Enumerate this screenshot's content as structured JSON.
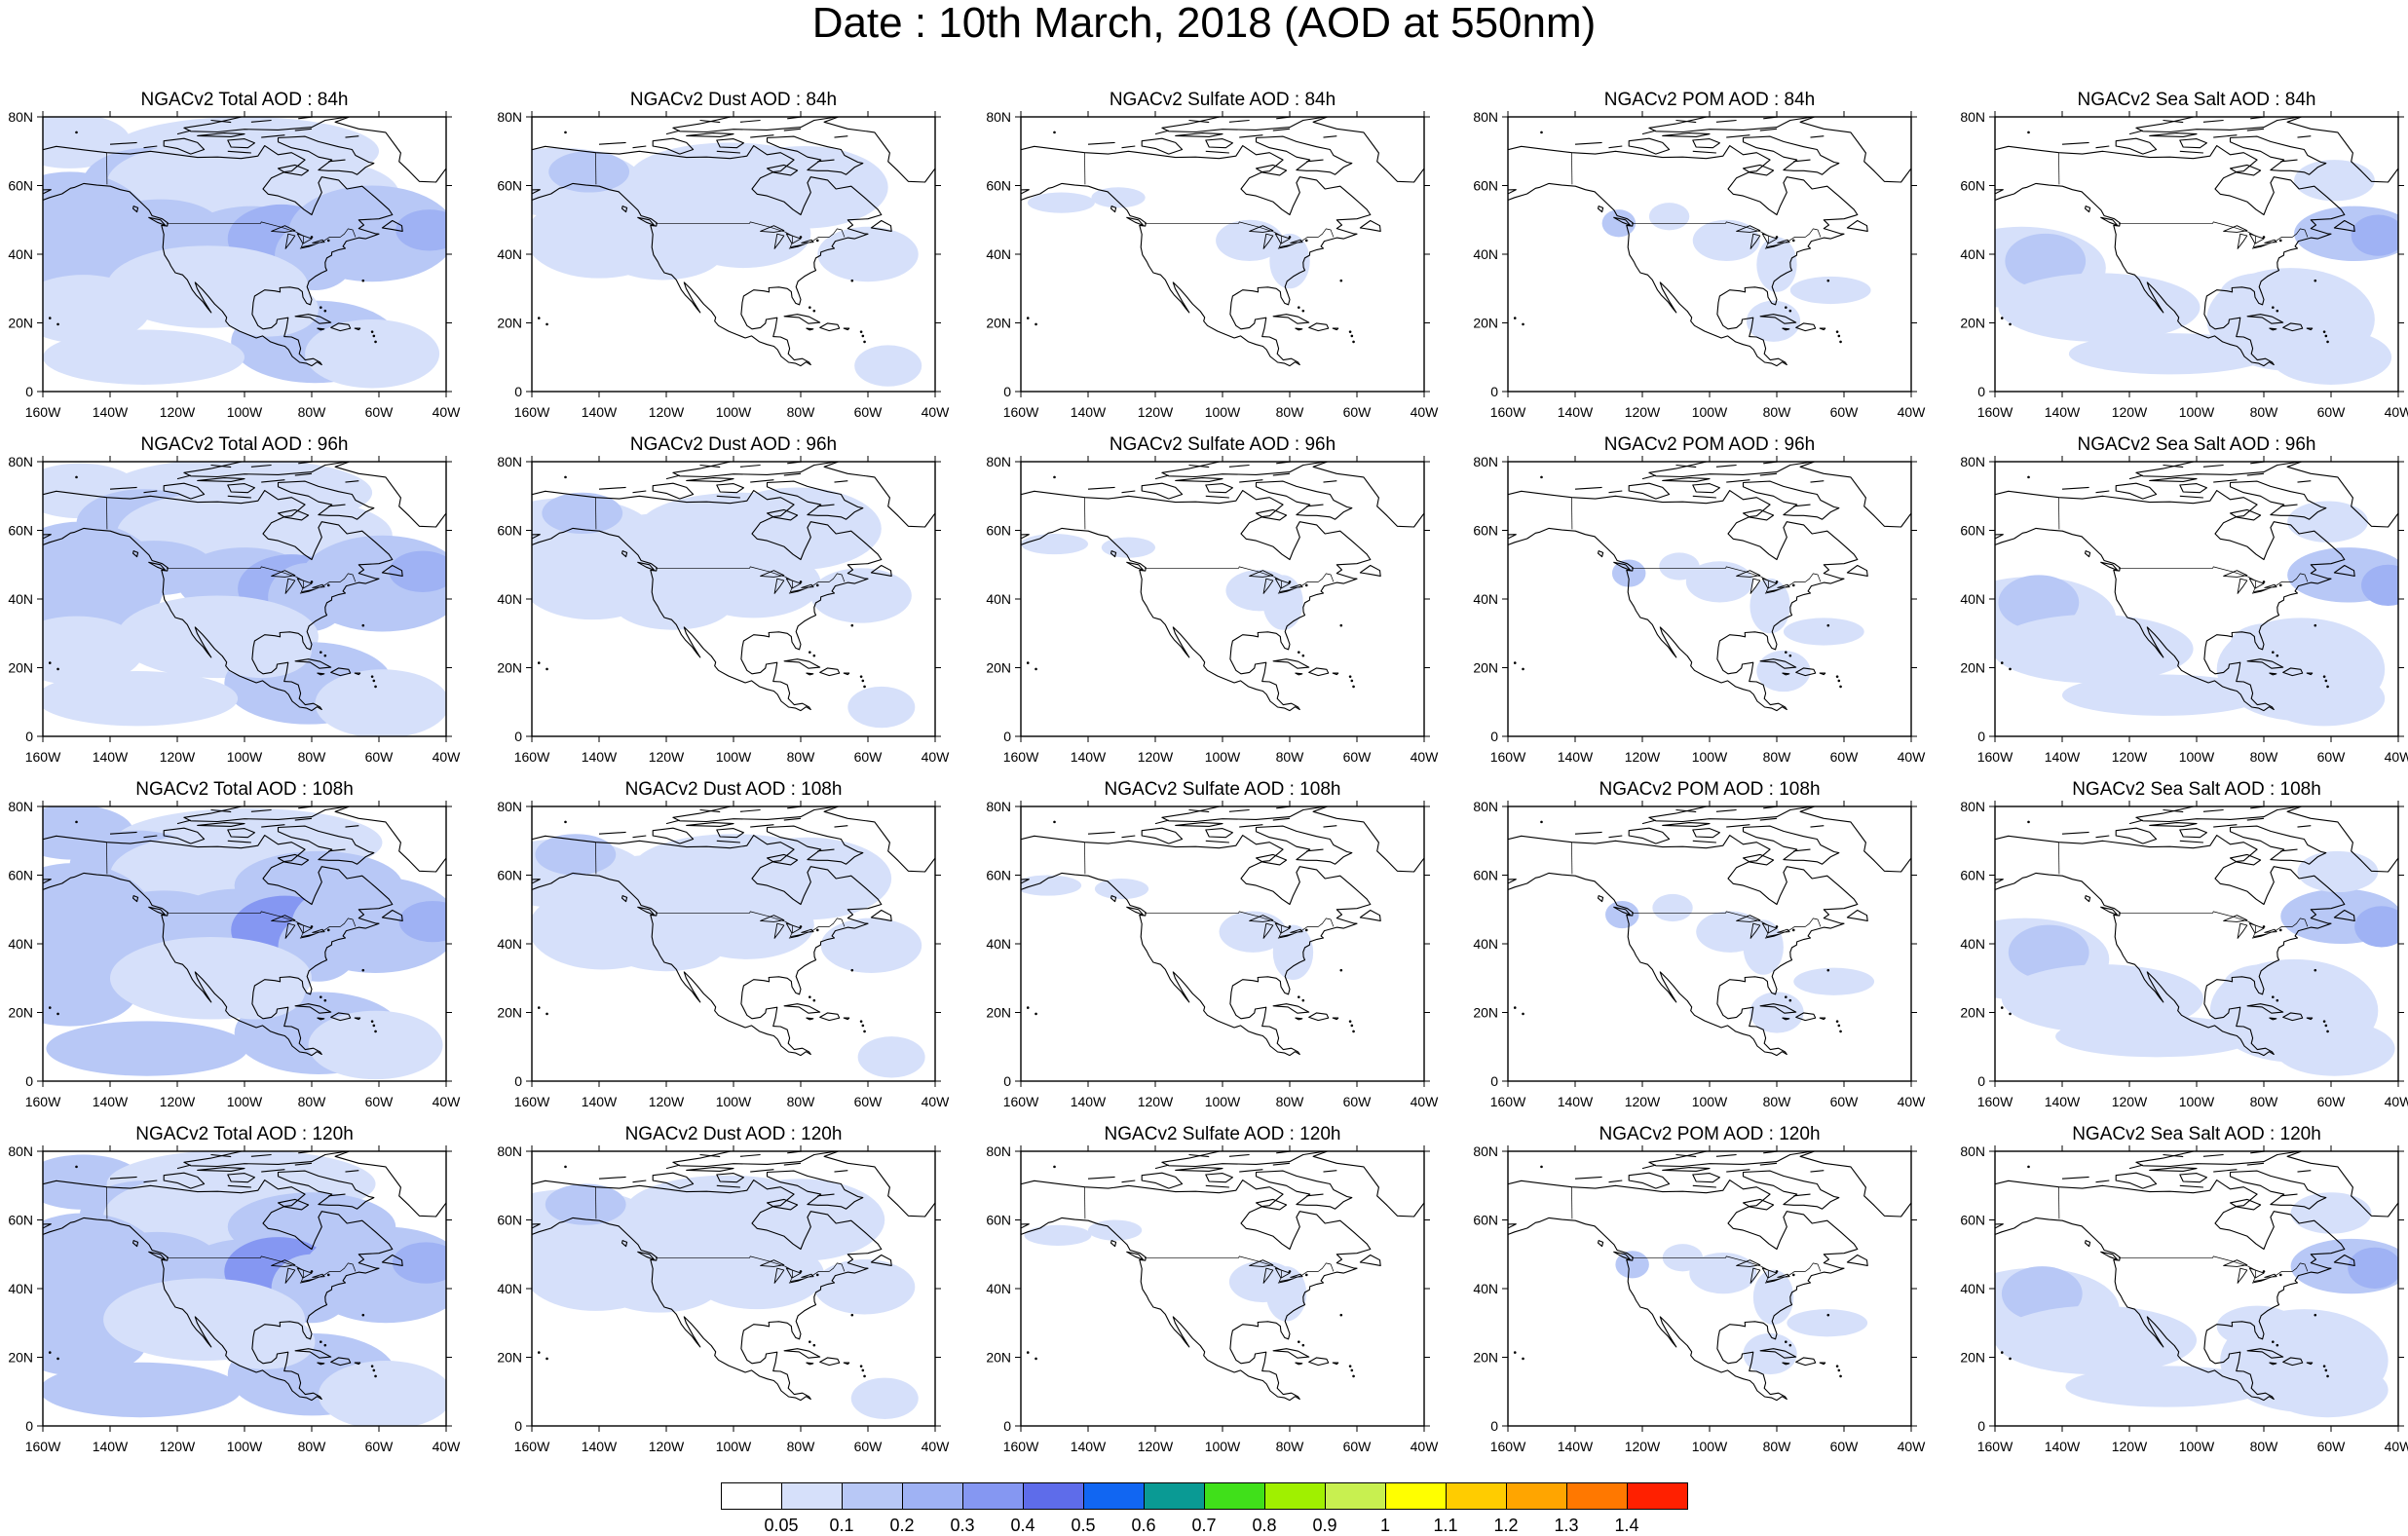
{
  "title": "Date : 10th March, 2018 (AOD at 550nm)",
  "lat_tick_labels": [
    "0",
    "20N",
    "40N",
    "60N",
    "80N"
  ],
  "lon_tick_labels": [
    "160W",
    "140W",
    "120W",
    "100W",
    "80W",
    "60W",
    "40W"
  ],
  "forecast_hours": [
    "84h",
    "96h",
    "108h",
    "120h"
  ],
  "panels": [
    [
      "NGACv2 Total AOD : 84h",
      "NGACv2 Dust AOD : 84h",
      "NGACv2 Sulfate AOD : 84h",
      "NGACv2 POM AOD : 84h",
      "NGACv2 Sea Salt AOD : 84h"
    ],
    [
      "NGACv2 Total AOD : 96h",
      "NGACv2 Dust AOD : 96h",
      "NGACv2 Sulfate AOD : 96h",
      "NGACv2 POM AOD : 96h",
      "NGACv2 Sea Salt AOD : 96h"
    ],
    [
      "NGACv2 Total AOD : 108h",
      "NGACv2 Dust AOD : 108h",
      "NGACv2 Sulfate AOD : 108h",
      "NGACv2 POM AOD : 108h",
      "NGACv2 Sea Salt AOD : 108h"
    ],
    [
      "NGACv2 Total AOD : 120h",
      "NGACv2 Dust AOD : 120h",
      "NGACv2 Sulfate AOD : 120h",
      "NGACv2 POM AOD : 120h",
      "NGACv2 Sea Salt  AOD : 120h"
    ]
  ],
  "colorbar": {
    "labels": [
      "0.05",
      "0.1",
      "0.2",
      "0.3",
      "0.4",
      "0.5",
      "0.6",
      "0.7",
      "0.8",
      "0.9",
      "1",
      "1.1",
      "1.2",
      "1.3",
      "1.4"
    ],
    "colors": [
      "#ffffff",
      "#d6e0fa",
      "#b8c8f6",
      "#9fb2f4",
      "#8597f2",
      "#5e6cea",
      "#1166f2",
      "#0a9a94",
      "#40e01a",
      "#a0f000",
      "#c8f050",
      "#ffff00",
      "#ffcc00",
      "#ffa500",
      "#ff7800",
      "#ff2000"
    ]
  },
  "colors": {
    "aod_light": "#d6e0fa",
    "aod_medium": "#b8c8f6",
    "aod_strong": "#9fb2f4",
    "aod_dense": "#8597f2",
    "aod_peak": "#5e6cea",
    "coastline": "#000000"
  }
}
